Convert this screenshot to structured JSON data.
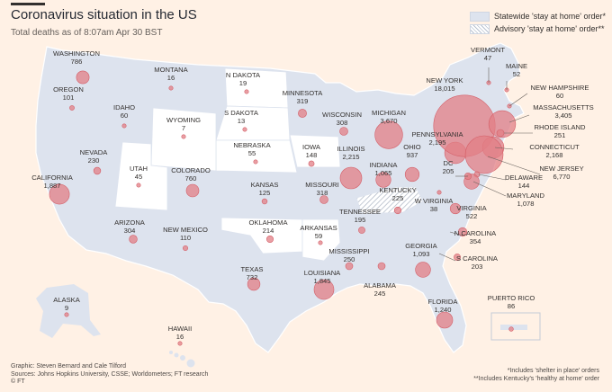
{
  "header": {
    "title": "Coronavirus situation in the US",
    "subtitle": "Total deaths as of 8:07am Apr 30 BST"
  },
  "legend": {
    "statewide": "Statewide 'stay at home' order*",
    "advisory": "Advisory 'stay at home' order**"
  },
  "colors": {
    "background": "#fff1e5",
    "stay_home": "#dde3ee",
    "no_order": "#ffffff",
    "bubble": "#e27f86",
    "title": "#262a33"
  },
  "states": {
    "washington": {
      "name": "WASHINGTON",
      "deaths": "786"
    },
    "oregon": {
      "name": "OREGON",
      "deaths": "101"
    },
    "california": {
      "name": "CALIFORNIA",
      "deaths": "1,887"
    },
    "nevada": {
      "name": "NEVADA",
      "deaths": "230"
    },
    "idaho": {
      "name": "IDAHO",
      "deaths": "60"
    },
    "montana": {
      "name": "MONTANA",
      "deaths": "16"
    },
    "wyoming": {
      "name": "WYOMING",
      "deaths": "7"
    },
    "utah": {
      "name": "UTAH",
      "deaths": "45"
    },
    "colorado": {
      "name": "COLORADO",
      "deaths": "760"
    },
    "arizona": {
      "name": "ARIZONA",
      "deaths": "304"
    },
    "new_mexico": {
      "name": "NEW MEXICO",
      "deaths": "110"
    },
    "n_dakota": {
      "name": "N DAKOTA",
      "deaths": "19"
    },
    "s_dakota": {
      "name": "S DAKOTA",
      "deaths": "13"
    },
    "nebraska": {
      "name": "NEBRASKA",
      "deaths": "55"
    },
    "kansas": {
      "name": "KANSAS",
      "deaths": "125"
    },
    "oklahoma": {
      "name": "OKLAHOMA",
      "deaths": "214"
    },
    "texas": {
      "name": "TEXAS",
      "deaths": "732"
    },
    "minnesota": {
      "name": "MINNESOTA",
      "deaths": "319"
    },
    "iowa": {
      "name": "IOWA",
      "deaths": "148"
    },
    "missouri": {
      "name": "MISSOURI",
      "deaths": "318"
    },
    "arkansas": {
      "name": "ARKANSAS",
      "deaths": "59"
    },
    "louisiana": {
      "name": "LOUISIANA",
      "deaths": "1,845"
    },
    "wisconsin": {
      "name": "WISCONSIN",
      "deaths": "308"
    },
    "illinois": {
      "name": "ILLINOIS",
      "deaths": "2,215"
    },
    "michigan": {
      "name": "MICHIGAN",
      "deaths": "3,670"
    },
    "indiana": {
      "name": "INDIANA",
      "deaths": "1,065"
    },
    "ohio": {
      "name": "OHIO",
      "deaths": "937"
    },
    "kentucky": {
      "name": "KENTUCKY",
      "deaths": "225"
    },
    "tennessee": {
      "name": "TENNESSEE",
      "deaths": "195"
    },
    "mississippi": {
      "name": "MISSISSIPPI",
      "deaths": "250"
    },
    "alabama": {
      "name": "ALABAMA",
      "deaths": "245"
    },
    "georgia": {
      "name": "GEORGIA",
      "deaths": "1,093"
    },
    "florida": {
      "name": "FLORIDA",
      "deaths": "1,240"
    },
    "s_carolina": {
      "name": "S CAROLINA",
      "deaths": "203"
    },
    "n_carolina": {
      "name": "N CAROLINA",
      "deaths": "354"
    },
    "virginia": {
      "name": "VIRGINIA",
      "deaths": "522"
    },
    "w_virginia": {
      "name": "W VIRGINIA",
      "deaths": "38"
    },
    "pennsylvania": {
      "name": "PENNSYLVANIA",
      "deaths": "2,195"
    },
    "new_york": {
      "name": "NEW YORK",
      "deaths": "18,015"
    },
    "vermont": {
      "name": "VERMONT",
      "deaths": "47"
    },
    "maine": {
      "name": "MAINE",
      "deaths": "52"
    },
    "new_hampshire": {
      "name": "NEW HAMPSHIRE",
      "deaths": "60"
    },
    "massachusetts": {
      "name": "MASSACHUSETTS",
      "deaths": "3,405"
    },
    "rhode_island": {
      "name": "RHODE ISLAND",
      "deaths": "251"
    },
    "connecticut": {
      "name": "CONNECTICUT",
      "deaths": "2,168"
    },
    "new_jersey": {
      "name": "NEW JERSEY",
      "deaths": "6,770"
    },
    "delaware": {
      "name": "DELAWARE",
      "deaths": "144"
    },
    "maryland": {
      "name": "MARYLAND",
      "deaths": "1,078"
    },
    "dc": {
      "name": "DC",
      "deaths": "205"
    },
    "alaska": {
      "name": "ALASKA",
      "deaths": "9"
    },
    "hawaii": {
      "name": "HAWAII",
      "deaths": "16"
    },
    "puerto_rico": {
      "name": "PUERTO RICO",
      "deaths": "86"
    }
  },
  "footer": {
    "credit": "Graphic: Steven Bernard and Cale Tilford",
    "sources": "Sources: Johns Hopkins University, CSSE; Worldometers; FT research",
    "copyright": "© FT",
    "note1": "*Includes 'shelter in place' orders",
    "note2": "**Includes Kentucky's 'healthy at home' order"
  }
}
